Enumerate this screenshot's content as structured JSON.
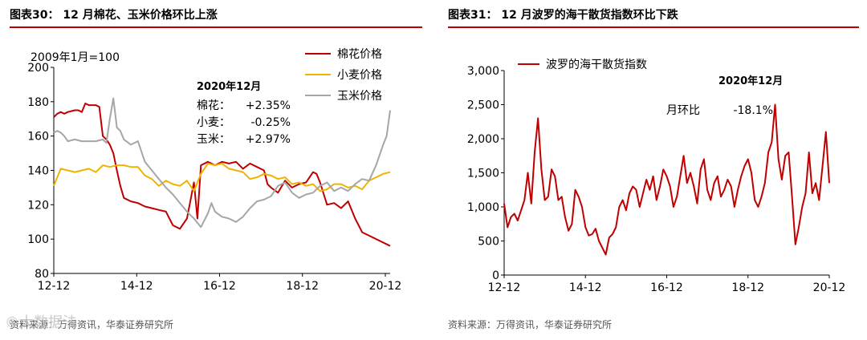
{
  "left": {
    "title": "图表30：  12 月棉花、玉米价格环比上涨",
    "source": "资料来源：万得资讯，华泰证券研究所",
    "chart_data": {
      "type": "line",
      "note": "2009年1月=100",
      "x_ticks": [
        "12-12",
        "14-12",
        "16-12",
        "18-12",
        "20-12"
      ],
      "ylim": [
        80,
        200
      ],
      "y_ticks": [
        80,
        100,
        120,
        140,
        160,
        180,
        200
      ],
      "series": [
        {
          "name": "棉花价格",
          "color": "#c00000",
          "x": [
            0,
            1,
            2,
            3,
            4,
            6,
            7,
            8,
            9,
            10,
            11,
            12,
            13,
            14,
            15,
            16,
            17,
            18,
            19,
            20,
            22,
            24,
            26,
            28,
            30,
            32,
            34,
            36,
            38,
            40,
            41,
            42,
            44,
            45,
            46,
            48,
            50,
            52,
            54,
            56,
            58,
            60,
            61,
            62,
            64,
            66,
            68,
            70,
            72,
            73,
            74,
            75,
            76,
            78,
            80,
            82,
            84,
            86,
            88,
            96
          ],
          "values": [
            171,
            173,
            174,
            173,
            174,
            175,
            175,
            174,
            179,
            178,
            178,
            178,
            177,
            160,
            158,
            155,
            150,
            140,
            131,
            124,
            122,
            121,
            119,
            118,
            117,
            116,
            108,
            106,
            112,
            133,
            112,
            143,
            145,
            144,
            143,
            145,
            144,
            145,
            141,
            144,
            142,
            140,
            132,
            130,
            127,
            134,
            130,
            132,
            133,
            136,
            139,
            138,
            133,
            120,
            121,
            118,
            122,
            112,
            104,
            96
          ]
        },
        {
          "name": "小麦价格",
          "color": "#f0b400",
          "x": [
            0,
            2,
            4,
            6,
            8,
            10,
            12,
            14,
            16,
            18,
            20,
            22,
            24,
            26,
            28,
            30,
            32,
            34,
            36,
            38,
            40,
            42,
            44,
            46,
            48,
            50,
            52,
            54,
            56,
            58,
            60,
            62,
            64,
            66,
            68,
            70,
            72,
            74,
            76,
            78,
            80,
            82,
            84,
            86,
            88,
            90,
            92,
            94,
            96
          ],
          "values": [
            131,
            141,
            140,
            139,
            140,
            141,
            139,
            143,
            142,
            143,
            143,
            142,
            142,
            137,
            135,
            131,
            134,
            132,
            131,
            134,
            128,
            138,
            144,
            143,
            144,
            141,
            140,
            139,
            135,
            136,
            138,
            137,
            135,
            136,
            132,
            133,
            131,
            132,
            128,
            129,
            132,
            132,
            130,
            131,
            129,
            134,
            136,
            138,
            139
          ]
        },
        {
          "name": "玉米价格",
          "color": "#a6a6a6",
          "x": [
            0,
            1,
            2,
            3,
            4,
            6,
            8,
            10,
            12,
            14,
            15,
            16,
            17,
            18,
            19,
            20,
            22,
            24,
            26,
            28,
            30,
            32,
            34,
            36,
            38,
            40,
            42,
            44,
            45,
            46,
            48,
            50,
            52,
            54,
            56,
            58,
            60,
            62,
            64,
            66,
            68,
            70,
            72,
            74,
            76,
            78,
            80,
            82,
            84,
            86,
            88,
            90,
            92,
            94,
            95,
            96
          ],
          "values": [
            162,
            163,
            162,
            160,
            157,
            158,
            157,
            157,
            157,
            158,
            156,
            170,
            182,
            165,
            163,
            158,
            155,
            157,
            145,
            140,
            135,
            130,
            126,
            121,
            116,
            112,
            107,
            115,
            121,
            116,
            113,
            112,
            110,
            113,
            118,
            122,
            123,
            125,
            131,
            133,
            127,
            124,
            126,
            127,
            131,
            133,
            128,
            130,
            128,
            132,
            135,
            134,
            143,
            155,
            160,
            175
          ]
        }
      ],
      "annotation": {
        "heading": "2020年12月",
        "rows": [
          {
            "label": "棉花：",
            "value": "+2.35%"
          },
          {
            "label": "小麦：",
            "value": "-0.25%"
          },
          {
            "label": "玉米：",
            "value": "+2.97%"
          }
        ]
      }
    }
  },
  "right": {
    "title": "图表31：  12 月波罗的海干散货指数环比下跌",
    "source": "资料来源：万得资讯，华泰证券研究所",
    "chart_data": {
      "type": "line",
      "x_ticks": [
        "12-12",
        "14-12",
        "16-12",
        "18-12",
        "20-12"
      ],
      "ylim": [
        0,
        3000
      ],
      "y_ticks": [
        0,
        500,
        1000,
        1500,
        2000,
        2500,
        3000
      ],
      "y_tick_labels": [
        "0",
        "500",
        "1,000",
        "1,500",
        "2,000",
        "2,500",
        "3,000"
      ],
      "series": [
        {
          "name": "波罗的海干散货指数",
          "color": "#c00000",
          "x": [
            0,
            1,
            2,
            3,
            4,
            5,
            6,
            7,
            8,
            9,
            10,
            11,
            12,
            13,
            14,
            15,
            16,
            17,
            18,
            19,
            20,
            21,
            22,
            23,
            24,
            25,
            26,
            27,
            28,
            29,
            30,
            31,
            32,
            33,
            34,
            35,
            36,
            37,
            38,
            39,
            40,
            41,
            42,
            43,
            44,
            45,
            46,
            47,
            48,
            49,
            50,
            51,
            52,
            53,
            54,
            55,
            56,
            57,
            58,
            59,
            60,
            61,
            62,
            63,
            64,
            65,
            66,
            67,
            68,
            69,
            70,
            71,
            72,
            73,
            74,
            75,
            76,
            77,
            78,
            79,
            80,
            81,
            82,
            83,
            84,
            85,
            86,
            87,
            88,
            89,
            90,
            91,
            92,
            93,
            94,
            95,
            96
          ],
          "values": [
            1050,
            700,
            850,
            900,
            800,
            950,
            1100,
            1500,
            1050,
            1800,
            2300,
            1550,
            1100,
            1150,
            1550,
            1450,
            1100,
            1150,
            850,
            650,
            750,
            1250,
            1150,
            1000,
            700,
            580,
            600,
            680,
            500,
            400,
            300,
            550,
            600,
            700,
            1000,
            1100,
            950,
            1200,
            1300,
            1250,
            1000,
            1200,
            1400,
            1250,
            1450,
            1100,
            1300,
            1550,
            1450,
            1300,
            1000,
            1150,
            1450,
            1750,
            1350,
            1500,
            1300,
            1050,
            1550,
            1700,
            1250,
            1100,
            1350,
            1450,
            1150,
            1250,
            1400,
            1300,
            1000,
            1250,
            1450,
            1600,
            1700,
            1500,
            1100,
            1000,
            1150,
            1350,
            1800,
            1950,
            2500,
            1700,
            1400,
            1750,
            1800,
            1150,
            450,
            700,
            1000,
            1200,
            1800,
            1200,
            1350,
            1100,
            1600,
            2100,
            1350
          ]
        }
      ],
      "annotation": {
        "heading": "2020年12月",
        "label": "月环比",
        "value": "-18.1%"
      }
    }
  },
  "watermark": "©大数据法"
}
